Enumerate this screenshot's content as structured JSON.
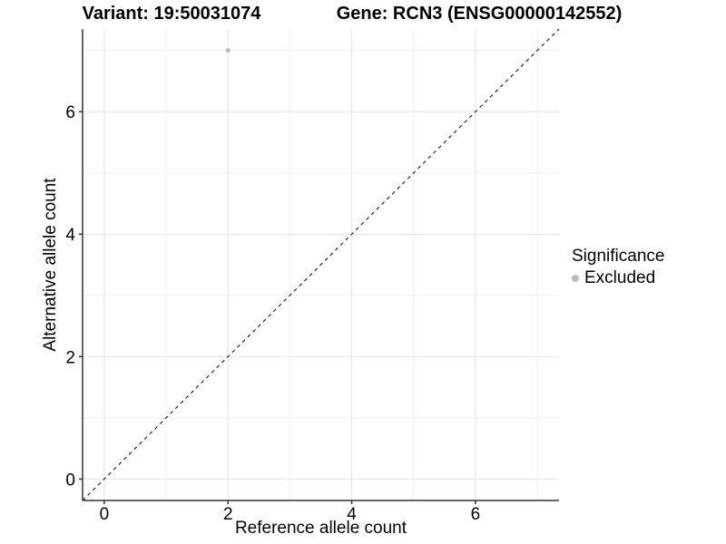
{
  "titles": {
    "variant": "Variant: 19:50031074",
    "gene": "Gene: RCN3 (ENSG00000142552)"
  },
  "legend": {
    "title": "Significance",
    "items": [
      {
        "label": "Excluded",
        "color": "#bcbcbc"
      }
    ]
  },
  "chart_data": {
    "type": "scatter",
    "xlabel": "Reference allele count",
    "ylabel": "Alternative allele count",
    "xlim": [
      -0.35,
      7.35
    ],
    "ylim": [
      -0.35,
      7.35
    ],
    "xticks": [
      0,
      2,
      4,
      6
    ],
    "yticks": [
      0,
      2,
      4,
      6
    ],
    "xtick_labels": [
      "0",
      "2",
      "4",
      "6"
    ],
    "ytick_labels": [
      "0",
      "2",
      "4",
      "6"
    ],
    "minor_gridlines_x": [
      1,
      3,
      5,
      7
    ],
    "minor_gridlines_y": [
      1,
      3,
      5,
      7
    ],
    "grid": "major+minor",
    "legend_position": "right",
    "series": [
      {
        "name": "Excluded",
        "color": "#bcbcbc",
        "points": [
          {
            "x": 2,
            "y": 7
          }
        ]
      }
    ],
    "reference_line": {
      "type": "identity y=x",
      "style": "dashed",
      "color": "#000000"
    }
  },
  "colors": {
    "background": "#ffffff",
    "grid_major": "#e4e4e4",
    "grid_minor": "#f1f1f1",
    "axis_line": "#333333",
    "tick_mark": "#333333",
    "text": "#000000",
    "point": "#bcbcbc"
  }
}
